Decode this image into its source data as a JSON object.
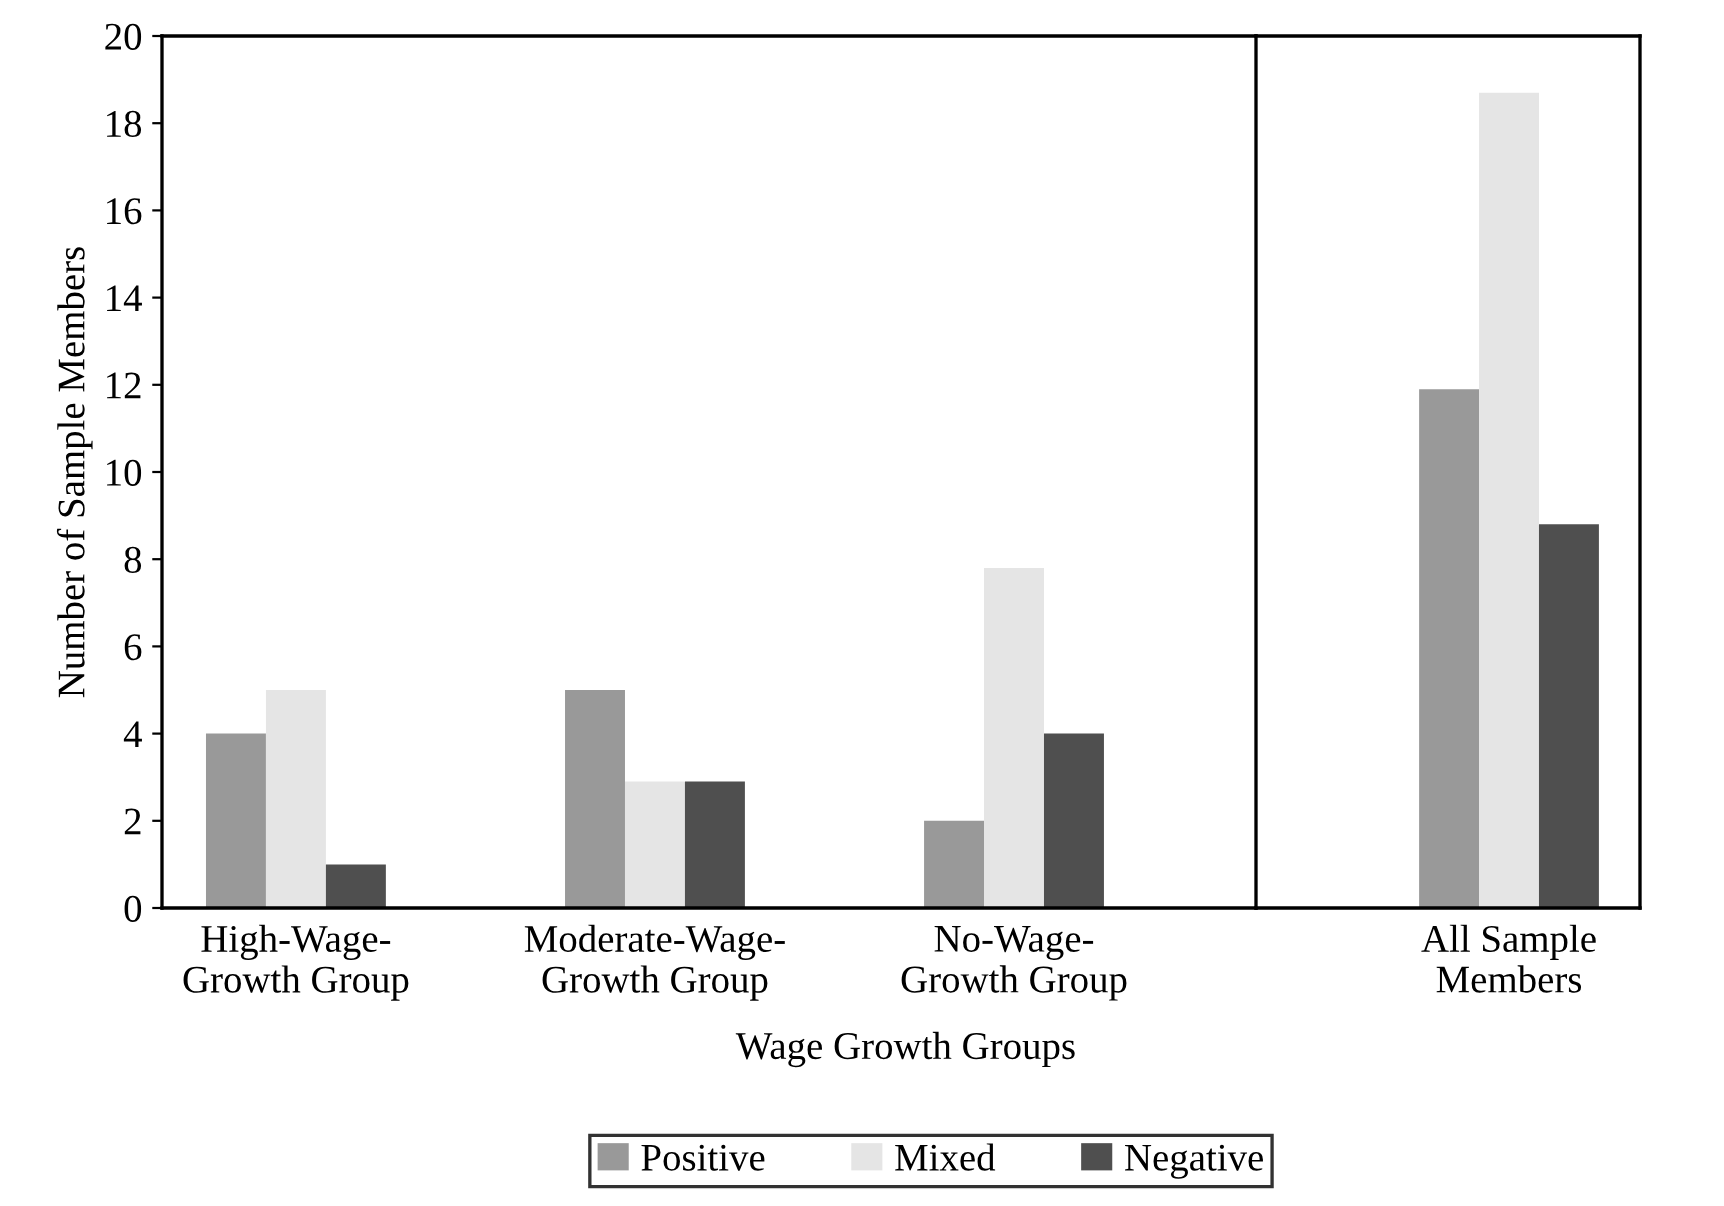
{
  "chart_data": [
    {
      "type": "bar",
      "xlabel": "Wage Growth Groups",
      "ylabel": "Number of Sample Members",
      "categories": [
        "High-Wage-\nGrowth Group",
        "Moderate-Wage-\nGrowth Group",
        "No-Wage-\nGrowth Group"
      ],
      "series": [
        {
          "name": "Positive",
          "color": "#999999",
          "values": [
            4,
            5,
            2
          ]
        },
        {
          "name": "Mixed",
          "color": "#e5e5e5",
          "values": [
            5,
            2.9,
            7.8
          ]
        },
        {
          "name": "Negative",
          "color": "#4f4f4f",
          "values": [
            1,
            2.9,
            4
          ]
        }
      ],
      "ylim": [
        0,
        20
      ],
      "yticks": [
        0,
        2,
        4,
        6,
        8,
        10,
        12,
        14,
        16,
        18,
        20
      ],
      "grid": false,
      "legend": "bottom"
    },
    {
      "type": "bar",
      "categories": [
        "All Sample\nMembers"
      ],
      "series": [
        {
          "color": "#999999",
          "values": [
            11.9
          ]
        },
        {
          "color": "#e5e5e5",
          "values": [
            18.7
          ]
        },
        {
          "color": "#4f4f4f",
          "values": [
            8.8
          ]
        }
      ],
      "ylim": [
        0,
        20
      ],
      "tick_labels": "x",
      "grid": false
    }
  ]
}
